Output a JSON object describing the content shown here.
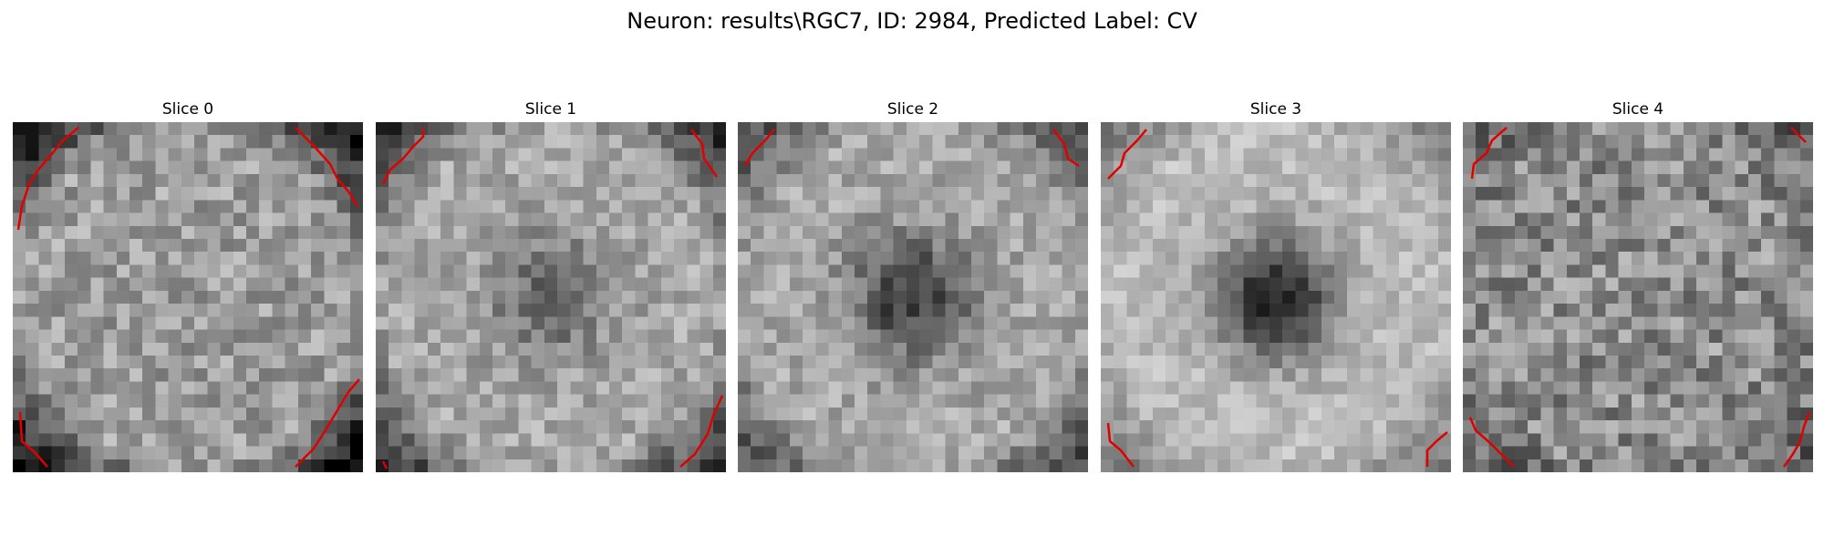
{
  "figure": {
    "suptitle": "Neuron: results\\RGC7, ID: 2984, Predicted Label: CV"
  },
  "panels": [
    {
      "title": "Slice 0",
      "grid_size": 27,
      "intensity_mean": 0.62,
      "intensity_noise": 0.16,
      "center_dark_strength": 0.0,
      "corner_darkness": 0.55,
      "seed": 11
    },
    {
      "title": "Slice 1",
      "grid_size": 27,
      "intensity_mean": 0.66,
      "intensity_noise": 0.13,
      "center_dark_strength": 0.28,
      "corner_darkness": 0.45,
      "seed": 23
    },
    {
      "title": "Slice 2",
      "grid_size": 27,
      "intensity_mean": 0.66,
      "intensity_noise": 0.13,
      "center_dark_strength": 0.45,
      "corner_darkness": 0.35,
      "seed": 37
    },
    {
      "title": "Slice 3",
      "grid_size": 27,
      "intensity_mean": 0.74,
      "intensity_noise": 0.1,
      "center_dark_strength": 0.62,
      "corner_darkness": 0.25,
      "seed": 53
    },
    {
      "title": "Slice 4",
      "grid_size": 27,
      "intensity_mean": 0.55,
      "intensity_noise": 0.2,
      "center_dark_strength": 0.0,
      "corner_darkness": 0.15,
      "seed": 71
    }
  ],
  "style": {
    "overlay_color": "#e00000",
    "colormap": "gray"
  }
}
